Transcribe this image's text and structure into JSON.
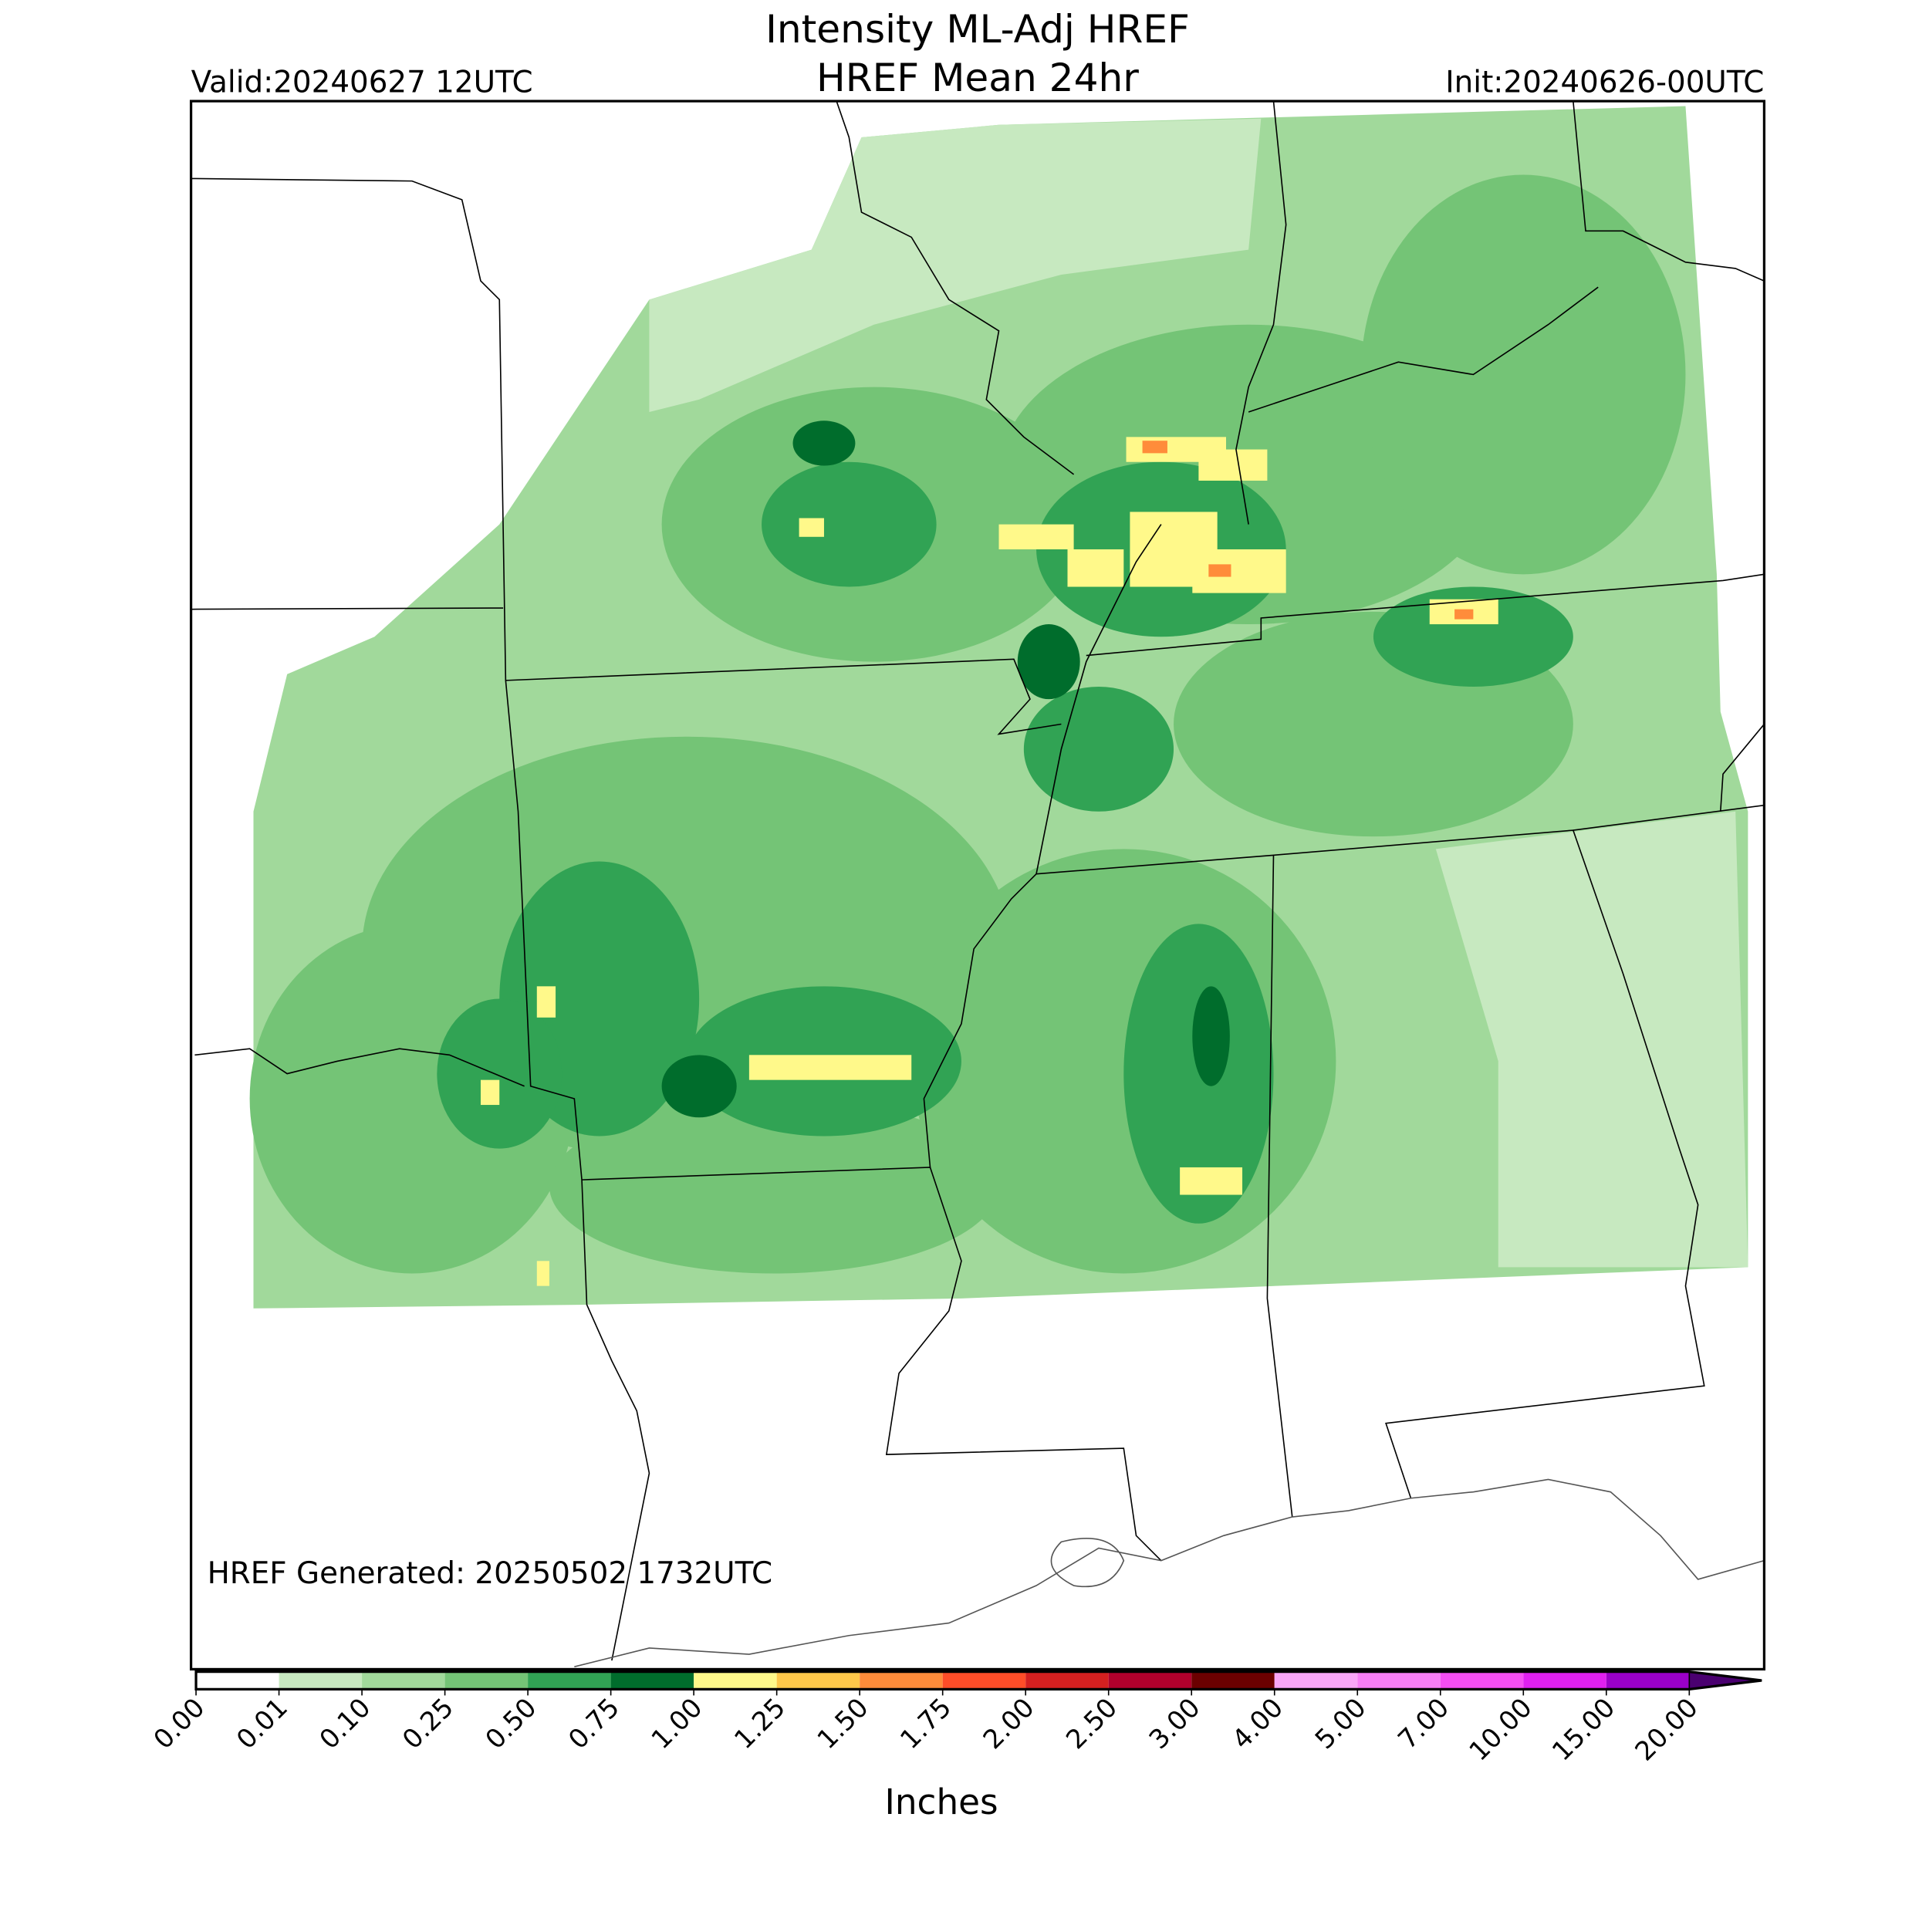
{
  "header": {
    "title_line1": "Intensity ML-Adj HREF",
    "title_line2": "HREF Mean 24hr",
    "valid": "Valid:20240627 12UTC",
    "init": "Init:20240626-00UTC"
  },
  "map": {
    "generated": "HREF Generated: 20250502 1732UTC"
  },
  "colorbar": {
    "label": "Inches",
    "ticks": [
      "0.00",
      "0.01",
      "0.10",
      "0.25",
      "0.50",
      "0.75",
      "1.00",
      "1.25",
      "1.50",
      "1.75",
      "2.00",
      "2.50",
      "3.00",
      "4.00",
      "5.00",
      "7.00",
      "10.00",
      "15.00",
      "20.00"
    ],
    "colors": [
      "#ffffff",
      "#c7e9c0",
      "#a1d99b",
      "#74c476",
      "#31a354",
      "#006d2c",
      "#fff98a",
      "#ffc84a",
      "#ff8c3a",
      "#ff4d28",
      "#d42020",
      "#b0002c",
      "#6b0000",
      "#f9a6f7",
      "#f77ef5",
      "#f54ef3",
      "#e020f0",
      "#9a00c8"
    ],
    "extend_color": "#4a0070"
  }
}
